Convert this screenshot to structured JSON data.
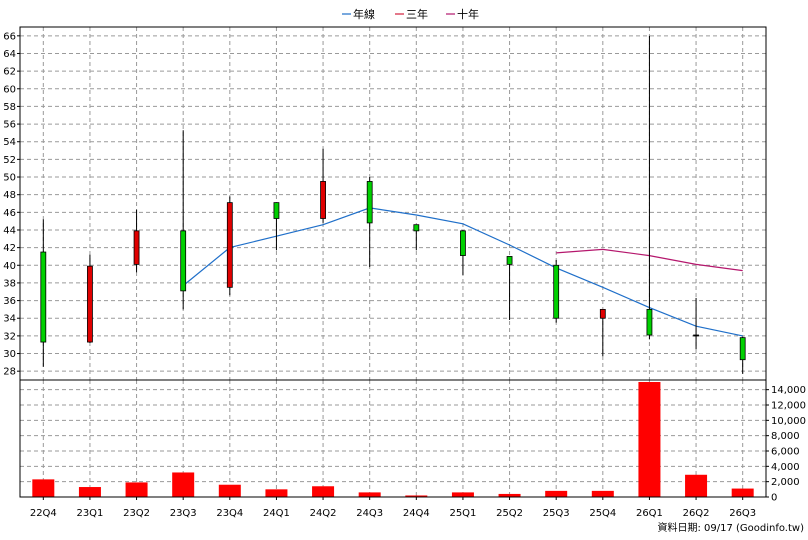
{
  "legend": [
    {
      "label": "年線",
      "color": "#1f6fc9"
    },
    {
      "label": "三年",
      "color": "#d21f3c"
    },
    {
      "label": "十年",
      "color": "#b5176d"
    }
  ],
  "source_text": "資料日期: 09/17  (Goodinfo.tw)",
  "colors": {
    "up": "#e00000",
    "down": "#00d000",
    "volume": "#ff0000"
  },
  "chart_data": {
    "type": "candlestick",
    "categories": [
      "22Q4",
      "23Q1",
      "23Q2",
      "23Q3",
      "23Q4",
      "24Q1",
      "24Q2",
      "24Q3",
      "24Q4",
      "25Q1",
      "25Q2",
      "25Q3",
      "25Q4",
      "26Q1",
      "26Q2",
      "26Q3"
    ],
    "price_axis": {
      "ylim": [
        27,
        67
      ],
      "ticks": [
        28,
        30,
        32,
        34,
        36,
        38,
        40,
        42,
        44,
        46,
        48,
        50,
        52,
        54,
        56,
        58,
        60,
        62,
        64,
        66
      ]
    },
    "candles": [
      {
        "open": 41.5,
        "close": 31.3,
        "high": 45.2,
        "low": 28.5
      },
      {
        "open": 31.3,
        "close": 39.9,
        "high": 41.2,
        "low": 31.2
      },
      {
        "open": 40.1,
        "close": 43.9,
        "high": 46.3,
        "low": 39.2
      },
      {
        "open": 43.9,
        "close": 37.1,
        "high": 55.3,
        "low": 35.0
      },
      {
        "open": 37.5,
        "close": 47.1,
        "high": 47.8,
        "low": 36.6
      },
      {
        "open": 47.1,
        "close": 45.3,
        "high": 47.1,
        "low": 41.7
      },
      {
        "open": 45.3,
        "close": 49.5,
        "high": 53.2,
        "low": 44.8
      },
      {
        "open": 49.5,
        "close": 44.8,
        "high": 50.0,
        "low": 39.8
      },
      {
        "open": 44.6,
        "close": 43.9,
        "high": 44.6,
        "low": 41.7
      },
      {
        "open": 43.9,
        "close": 41.1,
        "high": 44.0,
        "low": 38.9
      },
      {
        "open": 41.0,
        "close": 40.1,
        "high": 41.0,
        "low": 33.8
      },
      {
        "open": 40.0,
        "close": 34.0,
        "high": 40.6,
        "low": 33.5
      },
      {
        "open": 34.0,
        "close": 35.0,
        "high": 35.0,
        "low": 29.7
      },
      {
        "open": 35.0,
        "close": 32.1,
        "high": 66.0,
        "low": 31.6
      },
      {
        "open": 32.1,
        "close": 32.1,
        "high": 36.3,
        "low": 30.5
      },
      {
        "open": 31.8,
        "close": 29.3,
        "high": 31.9,
        "low": 27.7
      }
    ],
    "series": [
      {
        "name": "年線",
        "values": [
          null,
          null,
          null,
          37.7,
          42.0,
          43.3,
          44.6,
          46.5,
          45.7,
          44.7,
          42.3,
          39.7,
          37.5,
          35.2,
          33.1,
          32.0
        ]
      },
      {
        "name": "三年",
        "values": [
          null,
          null,
          null,
          null,
          null,
          null,
          null,
          null,
          null,
          null,
          null,
          null,
          null,
          null,
          null,
          null
        ]
      },
      {
        "name": "十年",
        "values": [
          null,
          null,
          null,
          null,
          null,
          null,
          null,
          null,
          null,
          null,
          null,
          41.4,
          41.8,
          41.1,
          40.1,
          39.4
        ]
      }
    ],
    "volume_axis": {
      "ylim": [
        0,
        15000
      ],
      "ticks": [
        0,
        2000,
        4000,
        6000,
        8000,
        10000,
        12000,
        14000
      ],
      "tick_labels": [
        "0",
        "2,000",
        "4,000",
        "6,000",
        "8,000",
        "10,000",
        "12,000",
        "14,000"
      ]
    },
    "volume": [
      2300,
      1300,
      1900,
      3200,
      1600,
      1000,
      1400,
      600,
      200,
      600,
      400,
      800,
      800,
      15000,
      2900,
      1100
    ]
  }
}
